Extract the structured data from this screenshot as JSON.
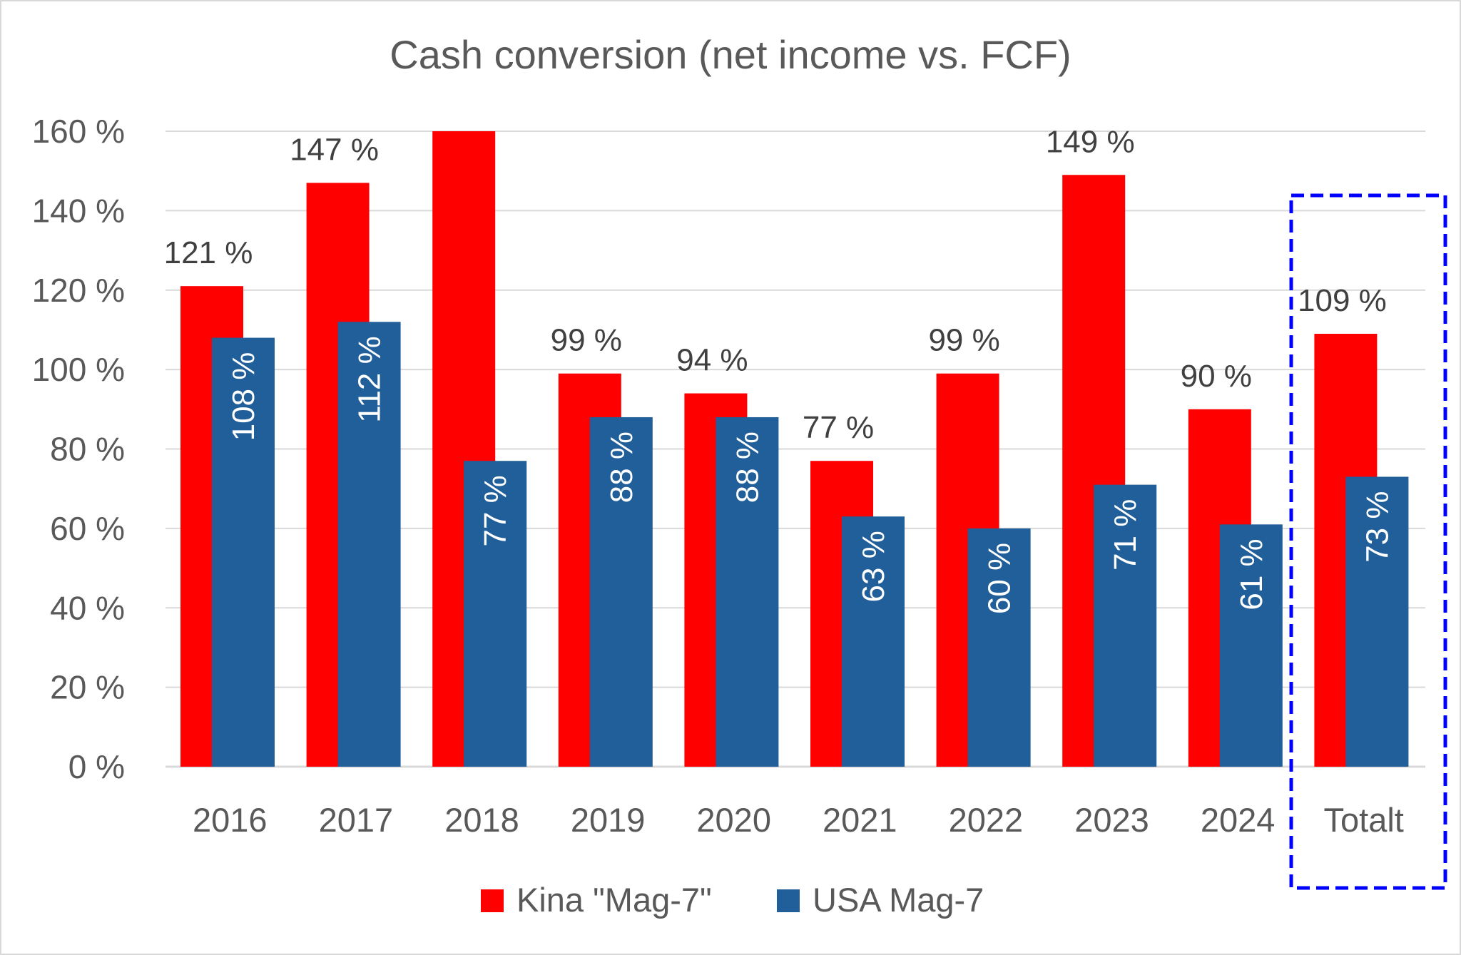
{
  "chart_data": {
    "type": "bar",
    "title": "Cash conversion (net income vs. FCF)",
    "xlabel": "",
    "ylabel": "",
    "ylim": [
      0,
      160
    ],
    "yticks": [
      "0 %",
      "20 %",
      "40 %",
      "60 %",
      "80 %",
      "100 %",
      "120 %",
      "140 %",
      "160 %"
    ],
    "ytick_values": [
      0,
      20,
      40,
      60,
      80,
      100,
      120,
      140,
      160
    ],
    "grid": true,
    "legend_position": "bottom",
    "categories": [
      "2016",
      "2017",
      "2018",
      "2019",
      "2020",
      "2021",
      "2022",
      "2023",
      "2024",
      "Totalt"
    ],
    "series": [
      {
        "name": "Kina \"Mag-7\"",
        "color": "#FF0000",
        "values": [
          121,
          147,
          160,
          99,
          94,
          77,
          99,
          149,
          90,
          109
        ],
        "labels": [
          "121 %",
          "147 %",
          null,
          "99 %",
          "94 %",
          "77 %",
          "99 %",
          "149 %",
          "90 %",
          "109 %"
        ]
      },
      {
        "name": "USA Mag-7",
        "color": "#215F9A",
        "values": [
          108,
          112,
          77,
          88,
          88,
          63,
          60,
          71,
          61,
          73
        ],
        "labels": [
          "108 %",
          "112 %",
          "77 %",
          "88 %",
          "88 %",
          "63 %",
          "60 %",
          "71 %",
          "61 %",
          "73 %"
        ]
      }
    ],
    "highlight": {
      "category": "Totalt",
      "style": "dashed box",
      "color": "#0000FF"
    }
  }
}
